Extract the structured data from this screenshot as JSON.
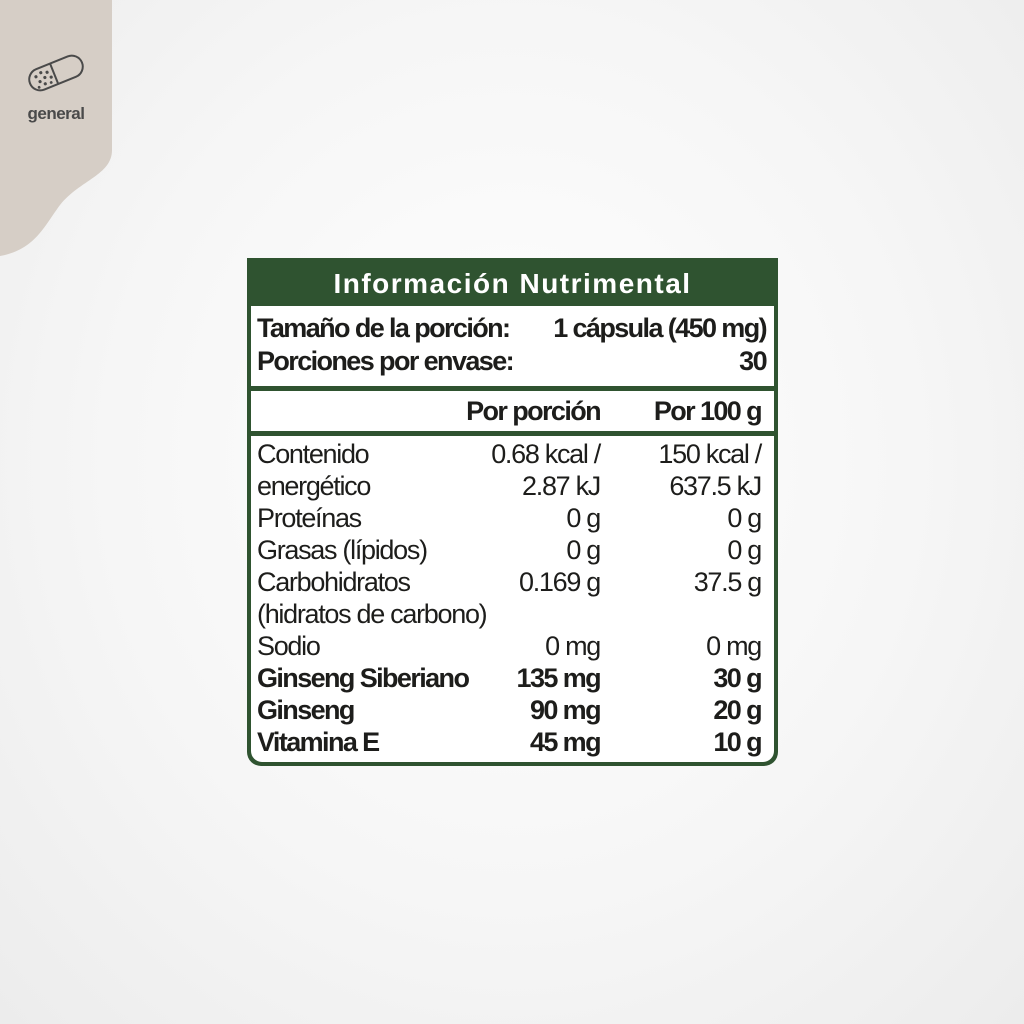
{
  "badge": {
    "label": "general",
    "icon": "capsule-icon",
    "background": "#d6cec6"
  },
  "label": {
    "title": "Información Nutrimental",
    "accent": "#2f5330",
    "serving_size_label": "Tamaño de la porción:",
    "serving_size_value": "1 cápsula (450 mg)",
    "servings_label": "Porciones por envase:",
    "servings_value": "30",
    "col_per_serving": "Por porción",
    "col_per_100g": "Por 100 g",
    "rows": [
      {
        "label": "Contenido",
        "per_serving": "0.68 kcal /",
        "per_100g": "150 kcal /",
        "bold": false
      },
      {
        "label": "energético",
        "per_serving": "2.87 kJ",
        "per_100g": "637.5 kJ",
        "bold": false
      },
      {
        "label": "Proteínas",
        "per_serving": "0 g",
        "per_100g": "0 g",
        "bold": false
      },
      {
        "label": "Grasas (lípidos)",
        "per_serving": "0 g",
        "per_100g": "0 g",
        "bold": false
      },
      {
        "label": "Carbohidratos",
        "per_serving": "0.169 g",
        "per_100g": "37.5 g",
        "bold": false
      },
      {
        "label": "(hidratos de carbono)",
        "per_serving": "",
        "per_100g": "",
        "bold": false
      },
      {
        "label": "Sodio",
        "per_serving": "0 mg",
        "per_100g": "0 mg",
        "bold": false
      },
      {
        "label": "Ginseng Siberiano",
        "per_serving": "135 mg",
        "per_100g": "30 g",
        "bold": true
      },
      {
        "label": "Ginseng",
        "per_serving": "90 mg",
        "per_100g": "20 g",
        "bold": true
      },
      {
        "label": "Vitamina E",
        "per_serving": "45 mg",
        "per_100g": "10 g",
        "bold": true
      }
    ]
  }
}
